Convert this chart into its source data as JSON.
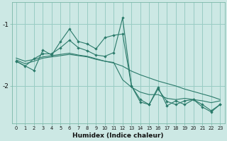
{
  "xlabel": "Humidex (Indice chaleur)",
  "bg_color": "#cce8e4",
  "grid_color": "#99ccc4",
  "line_color": "#2a7a6a",
  "xlim": [
    -0.5,
    23.5
  ],
  "ylim": [
    -2.6,
    -0.65
  ],
  "yticks": [
    -2,
    -1
  ],
  "xticks": [
    0,
    1,
    2,
    3,
    4,
    5,
    6,
    7,
    8,
    9,
    10,
    11,
    12,
    13,
    14,
    15,
    16,
    17,
    18,
    19,
    20,
    21,
    22,
    23
  ],
  "series": [
    {
      "x": [
        0,
        1,
        2,
        3,
        4,
        5,
        6,
        7,
        8,
        9,
        10,
        11,
        12,
        13,
        14,
        15,
        16,
        17,
        18,
        19,
        20,
        21,
        22,
        23
      ],
      "y": [
        -1.55,
        -1.6,
        -1.57,
        -1.53,
        -1.51,
        -1.49,
        -1.47,
        -1.5,
        -1.52,
        -1.56,
        -1.6,
        -1.63,
        -1.68,
        -1.76,
        -1.82,
        -1.87,
        -1.92,
        -1.96,
        -2.0,
        -2.05,
        -2.09,
        -2.13,
        -2.17,
        -2.22
      ],
      "marker": false
    },
    {
      "x": [
        0,
        1,
        2,
        3,
        4,
        5,
        6,
        7,
        8,
        9,
        10,
        11,
        12,
        13,
        14,
        15,
        16,
        17,
        18,
        19,
        20,
        21,
        22,
        23
      ],
      "y": [
        -1.6,
        -1.68,
        -1.56,
        -1.48,
        -1.48,
        -1.38,
        -1.26,
        -1.38,
        -1.43,
        -1.5,
        -1.52,
        -1.46,
        -0.9,
        -2.0,
        -2.26,
        -2.3,
        -2.05,
        -2.25,
        -2.3,
        -2.24,
        -2.22,
        -2.3,
        -2.4,
        -2.3
      ],
      "marker": true
    },
    {
      "x": [
        0,
        2,
        3,
        4,
        5,
        6,
        7,
        8,
        9,
        10,
        11,
        12,
        13,
        14,
        15,
        16,
        17,
        18,
        19,
        20,
        21,
        22,
        23
      ],
      "y": [
        -1.6,
        -1.75,
        -1.42,
        -1.5,
        -1.28,
        -1.08,
        -1.28,
        -1.32,
        -1.4,
        -1.22,
        -1.18,
        -1.16,
        -2.0,
        -2.22,
        -2.3,
        -2.02,
        -2.32,
        -2.24,
        -2.3,
        -2.22,
        -2.34,
        -2.42,
        -2.3
      ],
      "marker": true
    },
    {
      "x": [
        0,
        1,
        2,
        3,
        4,
        5,
        6,
        7,
        8,
        9,
        10,
        11,
        12,
        13,
        14,
        15,
        16,
        17,
        18,
        19,
        20,
        21,
        22,
        23
      ],
      "y": [
        -1.58,
        -1.64,
        -1.6,
        -1.55,
        -1.53,
        -1.51,
        -1.49,
        -1.51,
        -1.53,
        -1.57,
        -1.6,
        -1.62,
        -1.9,
        -2.02,
        -2.1,
        -2.14,
        -2.14,
        -2.2,
        -2.22,
        -2.2,
        -2.22,
        -2.24,
        -2.27,
        -2.24
      ],
      "marker": false
    }
  ]
}
